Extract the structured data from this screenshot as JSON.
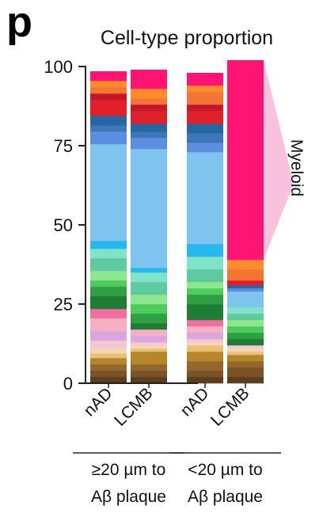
{
  "panel_label": "p",
  "chart_data": {
    "type": "bar",
    "stacked": true,
    "title": "Cell-type proportion",
    "ylim": [
      0,
      100
    ],
    "yticks": [
      0,
      25,
      50,
      75,
      100
    ],
    "categories": [
      "nAD",
      "LCMB",
      "nAD",
      "LCMB"
    ],
    "groups": [
      {
        "label_line1": "≥20 µm to",
        "label_line2": "Aβ plaque",
        "bars": [
          0,
          1
        ]
      },
      {
        "label_line1": "<20 µm to",
        "label_line2": "Aβ plaque",
        "bars": [
          2,
          3
        ]
      }
    ],
    "bracket_label": "Myeloid",
    "bars": [
      {
        "segments": [
          {
            "color": "#5c3d1e",
            "value": 2
          },
          {
            "color": "#7a5326",
            "value": 2
          },
          {
            "color": "#94682c",
            "value": 2
          },
          {
            "color": "#b5872b",
            "value": 2
          },
          {
            "color": "#e8c07a",
            "value": 1.5
          },
          {
            "color": "#f3d9b1",
            "value": 1.5
          },
          {
            "color": "#f7c6d5",
            "value": 2.5
          },
          {
            "color": "#d9a6dd",
            "value": 3
          },
          {
            "color": "#f7b0c3",
            "value": 4
          },
          {
            "color": "#ef6f9e",
            "value": 3
          },
          {
            "color": "#1e7d32",
            "value": 4
          },
          {
            "color": "#2ea043",
            "value": 3
          },
          {
            "color": "#4ecb5a",
            "value": 2
          },
          {
            "color": "#8ee68f",
            "value": 3
          },
          {
            "color": "#5fc9a0",
            "value": 4
          },
          {
            "color": "#7fe3c9",
            "value": 3
          },
          {
            "color": "#29b7f0",
            "value": 2.5
          },
          {
            "color": "#7fc4ee",
            "value": 30.5
          },
          {
            "color": "#5b8ee0",
            "value": 4
          },
          {
            "color": "#3d77b8",
            "value": 2
          },
          {
            "color": "#2666a3",
            "value": 3
          },
          {
            "color": "#e0212a",
            "value": 5
          },
          {
            "color": "#c4182a",
            "value": 2
          },
          {
            "color": "#f27534",
            "value": 2
          },
          {
            "color": "#ff8c2b",
            "value": 2
          },
          {
            "color": "#ff1474",
            "value": 3
          }
        ]
      },
      {
        "segments": [
          {
            "color": "#5c3d1e",
            "value": 2
          },
          {
            "color": "#7a5326",
            "value": 2
          },
          {
            "color": "#94682c",
            "value": 2
          },
          {
            "color": "#b5872b",
            "value": 4
          },
          {
            "color": "#e8c07a",
            "value": 1
          },
          {
            "color": "#f3d9b1",
            "value": 1
          },
          {
            "color": "#f7c6d5",
            "value": 1
          },
          {
            "color": "#d9a6dd",
            "value": 2
          },
          {
            "color": "#f7b0c3",
            "value": 2
          },
          {
            "color": "#1e7d32",
            "value": 2
          },
          {
            "color": "#2ea043",
            "value": 3
          },
          {
            "color": "#4ecb5a",
            "value": 3
          },
          {
            "color": "#8ee68f",
            "value": 3
          },
          {
            "color": "#5fc9a0",
            "value": 4
          },
          {
            "color": "#7fe3c9",
            "value": 3
          },
          {
            "color": "#29b7f0",
            "value": 1.5
          },
          {
            "color": "#7fc4ee",
            "value": 37.5
          },
          {
            "color": "#5b8ee0",
            "value": 3.5
          },
          {
            "color": "#3d77b8",
            "value": 2
          },
          {
            "color": "#2666a3",
            "value": 2.5
          },
          {
            "color": "#e0212a",
            "value": 4
          },
          {
            "color": "#c4182a",
            "value": 2
          },
          {
            "color": "#f27534",
            "value": 2
          },
          {
            "color": "#ff8c2b",
            "value": 3
          },
          {
            "color": "#ff1474",
            "value": 6
          }
        ]
      },
      {
        "segments": [
          {
            "color": "#5c3d1e",
            "value": 2
          },
          {
            "color": "#7a5326",
            "value": 2
          },
          {
            "color": "#94682c",
            "value": 3
          },
          {
            "color": "#b5872b",
            "value": 3
          },
          {
            "color": "#e8c07a",
            "value": 2
          },
          {
            "color": "#f3d9b1",
            "value": 1
          },
          {
            "color": "#f7c6d5",
            "value": 1
          },
          {
            "color": "#d9a6dd",
            "value": 2
          },
          {
            "color": "#f7b0c3",
            "value": 2
          },
          {
            "color": "#ef6f9e",
            "value": 2
          },
          {
            "color": "#1e7d32",
            "value": 5
          },
          {
            "color": "#2ea043",
            "value": 3
          },
          {
            "color": "#4ecb5a",
            "value": 2
          },
          {
            "color": "#8ee68f",
            "value": 2
          },
          {
            "color": "#5fc9a0",
            "value": 4
          },
          {
            "color": "#7fe3c9",
            "value": 4
          },
          {
            "color": "#29b7f0",
            "value": 4
          },
          {
            "color": "#7fc4ee",
            "value": 29
          },
          {
            "color": "#5b8ee0",
            "value": 3
          },
          {
            "color": "#3d77b8",
            "value": 3
          },
          {
            "color": "#2666a3",
            "value": 3
          },
          {
            "color": "#e0212a",
            "value": 4
          },
          {
            "color": "#c4182a",
            "value": 2
          },
          {
            "color": "#f27534",
            "value": 4
          },
          {
            "color": "#ff8c2b",
            "value": 2
          },
          {
            "color": "#ff1474",
            "value": 4
          }
        ]
      },
      {
        "segments": [
          {
            "color": "#5c3d1e",
            "value": 2
          },
          {
            "color": "#7a5326",
            "value": 3
          },
          {
            "color": "#94682c",
            "value": 2
          },
          {
            "color": "#b5872b",
            "value": 2
          },
          {
            "color": "#e8c07a",
            "value": 1
          },
          {
            "color": "#f3d9b1",
            "value": 1
          },
          {
            "color": "#f7c6d5",
            "value": 1
          },
          {
            "color": "#1e7d32",
            "value": 2
          },
          {
            "color": "#2ea043",
            "value": 2
          },
          {
            "color": "#4ecb5a",
            "value": 2
          },
          {
            "color": "#8ee68f",
            "value": 2
          },
          {
            "color": "#5fc9a0",
            "value": 2
          },
          {
            "color": "#7fe3c9",
            "value": 2
          },
          {
            "color": "#7fc4ee",
            "value": 5
          },
          {
            "color": "#5b8ee0",
            "value": 1
          },
          {
            "color": "#2666a3",
            "value": 1
          },
          {
            "color": "#e0212a",
            "value": 1.5
          },
          {
            "color": "#f27534",
            "value": 3.5
          },
          {
            "color": "#ff8c2b",
            "value": 3
          },
          {
            "color": "#ff1474",
            "value": 63
          }
        ]
      }
    ]
  }
}
